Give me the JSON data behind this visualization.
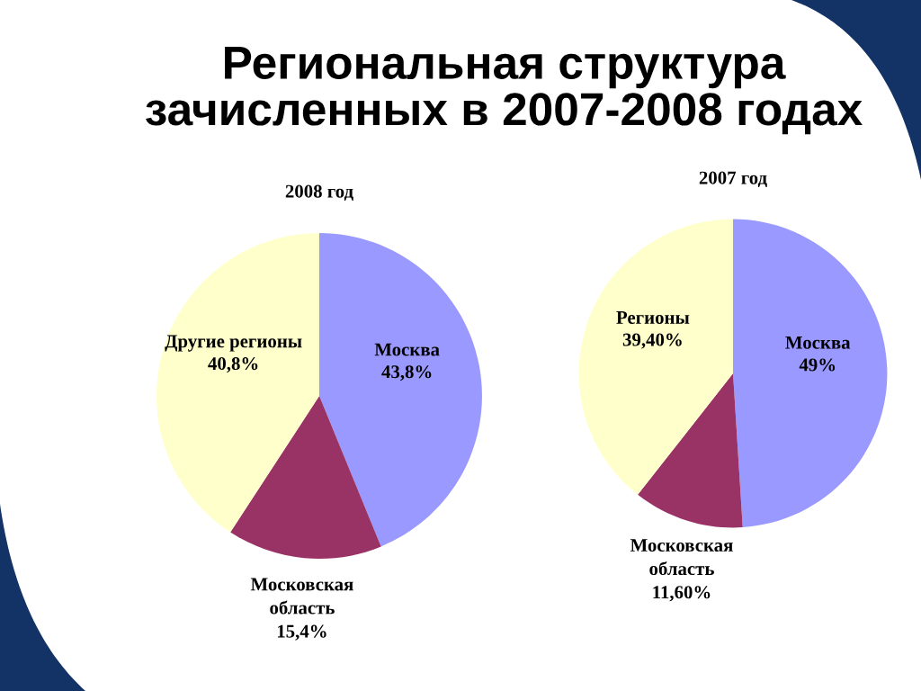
{
  "chart_data": [
    {
      "type": "other",
      "title": "Региональная структура\nзачисленных в 2007-2008 годах"
    },
    {
      "type": "pie",
      "title": "2008 год",
      "categories": [
        "Москва",
        "Московская\nобласть",
        "Другие регионы"
      ],
      "values": [
        43.8,
        15.4,
        40.8
      ],
      "value_labels": [
        "43,8%",
        "15,4%",
        "40,8%"
      ],
      "colors": [
        "#9999ff",
        "#993366",
        "#ffffcc"
      ]
    },
    {
      "type": "pie",
      "title": "2007 год",
      "categories": [
        "Москва",
        "Московская\nобласть",
        "Регионы"
      ],
      "values": [
        49,
        11.6,
        39.4
      ],
      "value_labels": [
        "49%",
        "11,60%",
        "39,40%"
      ],
      "colors": [
        "#9999ff",
        "#993366",
        "#ffffcc"
      ]
    }
  ]
}
